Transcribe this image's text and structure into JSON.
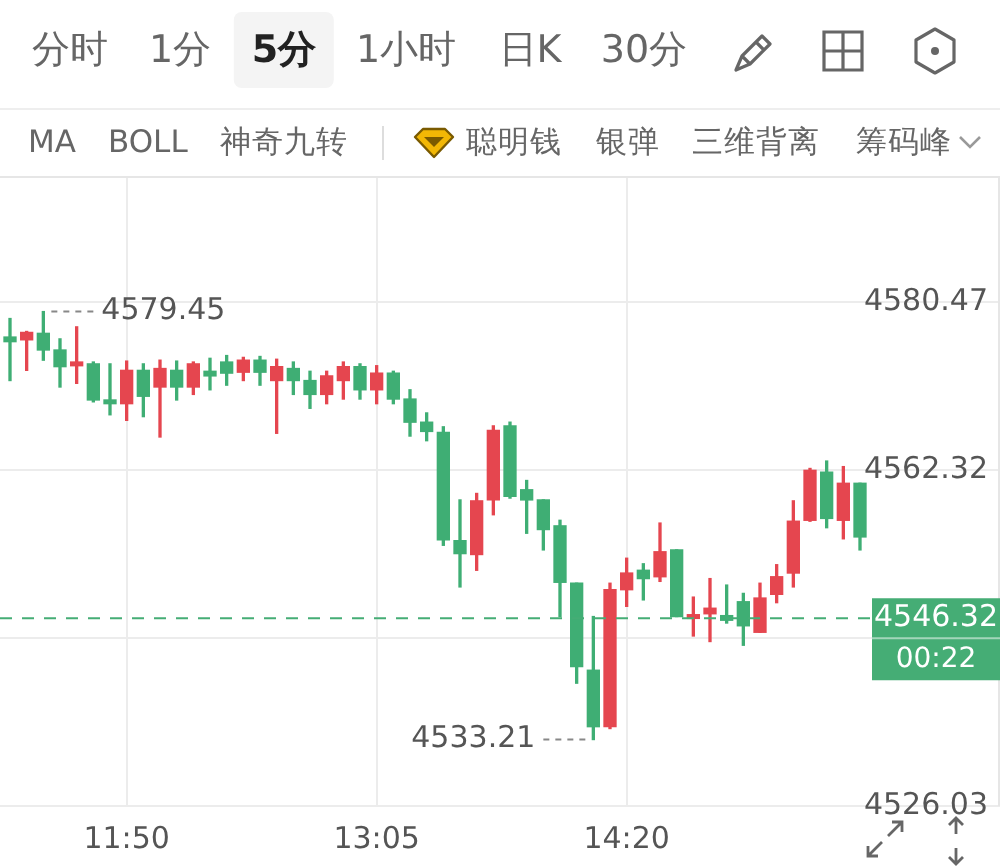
{
  "chart_data": {
    "type": "candlestick",
    "x": [
      11.25,
      11.3333,
      11.4167,
      11.5,
      11.5833,
      11.6667,
      11.75,
      11.8333,
      11.9167,
      12,
      12.0833,
      12.1667,
      12.25,
      12.3333,
      12.4167,
      12.5,
      12.5833,
      12.6667,
      12.75,
      12.8333,
      12.9167,
      13,
      13.0833,
      13.1667,
      13.25,
      13.3333,
      13.4167,
      13.5,
      13.5833,
      13.6667,
      13.75,
      13.8333,
      13.9167,
      14,
      14.0833,
      14.1667,
      14.25,
      14.3333,
      14.4167,
      14.5,
      14.5833,
      14.6667,
      14.75,
      14.8333,
      14.9167,
      15,
      15.0833,
      15.1667,
      15.25,
      15.3333,
      15.4167,
      15.5
    ],
    "ohlc": [
      [
        4576.7,
        4578.7,
        4572.0,
        4576.2
      ],
      [
        4576.4,
        4577.3,
        4573.1,
        4577.2
      ],
      [
        4577.1,
        4579.45,
        4574.2,
        4575.3
      ],
      [
        4575.3,
        4576.5,
        4571.3,
        4573.5
      ],
      [
        4573.6,
        4577.8,
        4571.7,
        4574.0
      ],
      [
        4573.8,
        4574.0,
        4569.7,
        4569.9
      ],
      [
        4569.9,
        4573.8,
        4568.3,
        4569.5
      ],
      [
        4569.5,
        4574.1,
        4567.7,
        4573.1
      ],
      [
        4573.1,
        4573.8,
        4568.1,
        4570.3
      ],
      [
        4571.3,
        4574.2,
        4565.9,
        4573.3
      ],
      [
        4573.1,
        4574.1,
        4569.9,
        4571.3
      ],
      [
        4571.3,
        4574.0,
        4570.5,
        4573.8
      ],
      [
        4573.0,
        4574.4,
        4571.0,
        4572.5
      ],
      [
        4574.0,
        4574.7,
        4571.5,
        4572.8
      ],
      [
        4572.9,
        4574.5,
        4572.0,
        4574.2
      ],
      [
        4574.2,
        4574.6,
        4571.5,
        4572.9
      ],
      [
        4572.0,
        4574.3,
        4566.3,
        4573.5
      ],
      [
        4573.3,
        4574.0,
        4570.5,
        4572.0
      ],
      [
        4572.0,
        4573.0,
        4569.0,
        4570.5
      ],
      [
        4570.5,
        4573.0,
        4569.5,
        4572.5
      ],
      [
        4572.0,
        4574.0,
        4570.0,
        4573.5
      ],
      [
        4573.5,
        4573.8,
        4570.0,
        4571.0
      ],
      [
        4571.0,
        4573.6,
        4569.5,
        4572.8
      ],
      [
        4572.8,
        4573.0,
        4569.5,
        4570.0
      ],
      [
        4570.0,
        4571.0,
        4566.0,
        4567.5
      ],
      [
        4567.5,
        4568.5,
        4565.5,
        4566.5
      ],
      [
        4566.4,
        4567.0,
        4554.2,
        4554.8
      ],
      [
        4554.7,
        4559.1,
        4549.7,
        4553.3
      ],
      [
        4553.2,
        4559.8,
        4551.5,
        4559.0
      ],
      [
        4559.1,
        4567.1,
        4557.5,
        4566.6
      ],
      [
        4567.1,
        4567.5,
        4559.3,
        4559.5
      ],
      [
        4560.2,
        4561.2,
        4555.5,
        4559.1
      ],
      [
        4559.1,
        4559.1,
        4553.7,
        4555.9
      ],
      [
        4556.3,
        4556.9,
        4546.5,
        4550.2
      ],
      [
        4550.1,
        4550.1,
        4539.3,
        4541.1
      ],
      [
        4540.7,
        4546.5,
        4533.21,
        4534.6
      ],
      [
        4534.6,
        4550.1,
        4534.4,
        4549.4
      ],
      [
        4549.4,
        4552.8,
        4547.6,
        4551.2
      ],
      [
        4551.5,
        4552.2,
        4548.3,
        4550.6
      ],
      [
        4550.8,
        4556.6,
        4550.3,
        4553.5
      ],
      [
        4553.7,
        4553.7,
        4546.5,
        4546.5
      ],
      [
        4546.3,
        4548.6,
        4544.4,
        4546.7
      ],
      [
        4546.8,
        4550.6,
        4543.8,
        4547.4
      ],
      [
        4546.6,
        4549.9,
        4545.8,
        4546.1
      ],
      [
        4548.1,
        4549.0,
        4543.4,
        4545.5
      ],
      [
        4544.8,
        4550.1,
        4544.8,
        4548.5
      ],
      [
        4548.9,
        4552.1,
        4548.0,
        4550.8
      ],
      [
        4551.2,
        4559.0,
        4549.7,
        4556.8
      ],
      [
        4556.9,
        4562.5,
        4556.8,
        4562.3
      ],
      [
        4562.1,
        4563.3,
        4556.1,
        4557.1
      ],
      [
        4556.9,
        4562.7,
        4554.9,
        4560.9
      ],
      [
        4560.9,
        4560.9,
        4553.7,
        4555.1
      ]
    ],
    "colors": [
      "#3fae74",
      "#e5464f",
      "#3fae74",
      "#3fae74",
      "#e5464f",
      "#3fae74",
      "#3fae74",
      "#e5464f",
      "#3fae74",
      "#e5464f",
      "#3fae74",
      "#e5464f",
      "#3fae74",
      "#3fae74",
      "#e5464f",
      "#3fae74",
      "#e5464f",
      "#3fae74",
      "#3fae74",
      "#e5464f",
      "#e5464f",
      "#3fae74",
      "#e5464f",
      "#3fae74",
      "#3fae74",
      "#3fae74",
      "#3fae74",
      "#3fae74",
      "#e5464f",
      "#e5464f",
      "#3fae74",
      "#3fae74",
      "#3fae74",
      "#3fae74",
      "#3fae74",
      "#3fae74",
      "#e5464f",
      "#e5464f",
      "#3fae74",
      "#e5464f",
      "#3fae74",
      "#e5464f",
      "#e5464f",
      "#3fae74",
      "#3fae74",
      "#e5464f",
      "#e5464f",
      "#e5464f",
      "#e5464f",
      "#3fae74",
      "#e5464f",
      "#3fae74"
    ],
    "xlim": [
      11.2,
      16.2
    ],
    "xticks": [
      {
        "value": 11.8333,
        "label": "11:50"
      },
      {
        "value": 13.0833,
        "label": "13:05"
      },
      {
        "value": 14.3333,
        "label": "14:20"
      }
    ],
    "ylim": [
      4526.03,
      4594.1
    ],
    "yticks": [
      4526.03,
      {
        "value": 4544.18,
        "label": null
      },
      4562.32,
      4580.47
    ],
    "grid": true,
    "ref_lines": [
      {
        "axis": "y",
        "value": 4546.32,
        "label": "4546.32",
        "color": "#45ad75",
        "line_style": "dashed"
      }
    ],
    "annotations": [
      "分时",
      "1分",
      "5分",
      "1小时",
      "日K",
      "30分",
      "MA",
      "BOLL",
      "神奇九转",
      "聪明钱",
      "银弹",
      "三维背离",
      "筹码峰",
      "00:22",
      {
        "text": "4579.45",
        "x": 11.4167,
        "y": 4579.45
      },
      {
        "text": "4533.21",
        "x": 14.1667,
        "y": 4533.21
      }
    ]
  }
}
